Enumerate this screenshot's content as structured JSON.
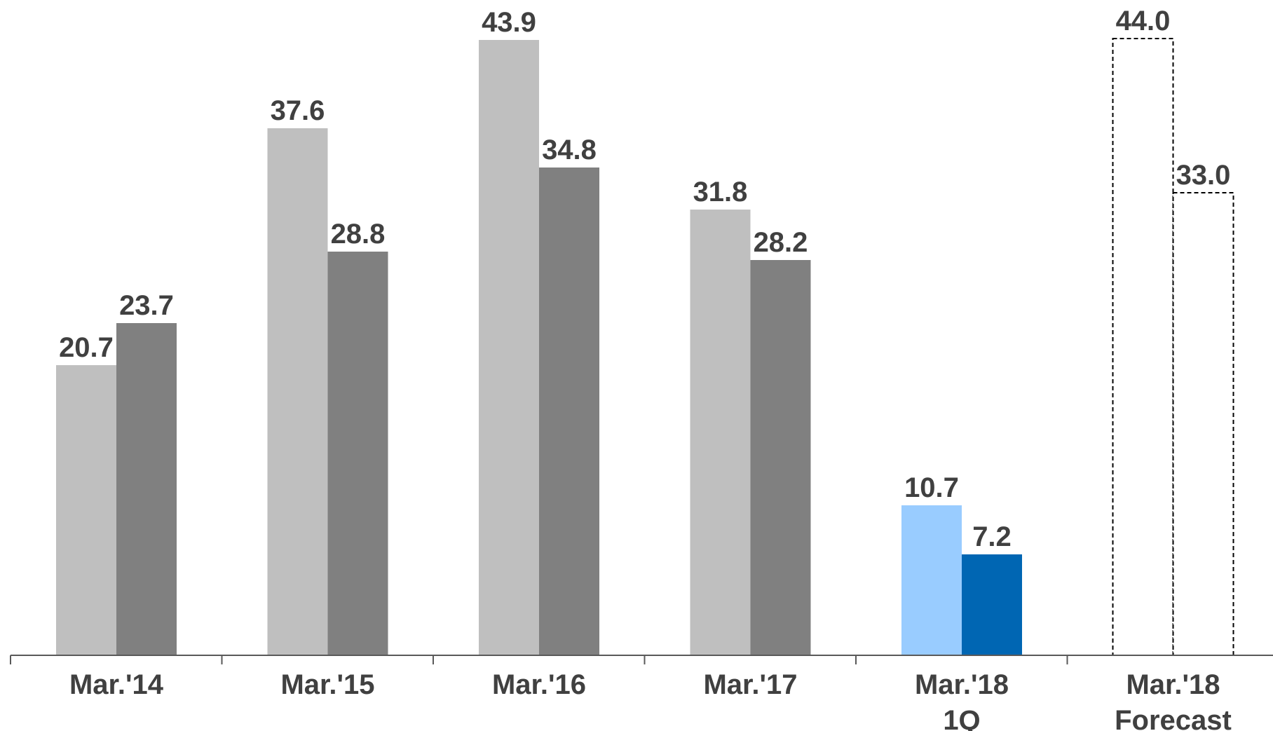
{
  "chart_data": {
    "type": "bar",
    "categories": [
      [
        "Mar.'14"
      ],
      [
        "Mar.'15"
      ],
      [
        "Mar.'16"
      ],
      [
        "Mar.'17"
      ],
      [
        "Mar.'18",
        "1Q"
      ],
      [
        "Mar.'18",
        "Forecast"
      ]
    ],
    "series": [
      {
        "values": [
          20.7,
          37.6,
          43.9,
          31.8,
          10.7,
          44.0
        ],
        "labels": [
          "20.7",
          "37.6",
          "43.9",
          "31.8",
          "10.7",
          "44.0"
        ],
        "colors": [
          "#bfbfbf",
          "#bfbfbf",
          "#bfbfbf",
          "#bfbfbf",
          "#99ccff",
          "#ffffff"
        ]
      },
      {
        "values": [
          23.7,
          28.8,
          34.8,
          28.2,
          7.2,
          33.0
        ],
        "labels": [
          "23.7",
          "28.8",
          "34.8",
          "28.2",
          "7.2",
          "33.0"
        ],
        "colors": [
          "#808080",
          "#808080",
          "#808080",
          "#808080",
          "#0066b3",
          "#ffffff"
        ]
      }
    ],
    "dashed_outline_categories": [
      5
    ],
    "ylim": [
      0,
      44
    ],
    "grid": false,
    "legend": "none",
    "title": "",
    "xlabel": "",
    "ylabel": ""
  }
}
